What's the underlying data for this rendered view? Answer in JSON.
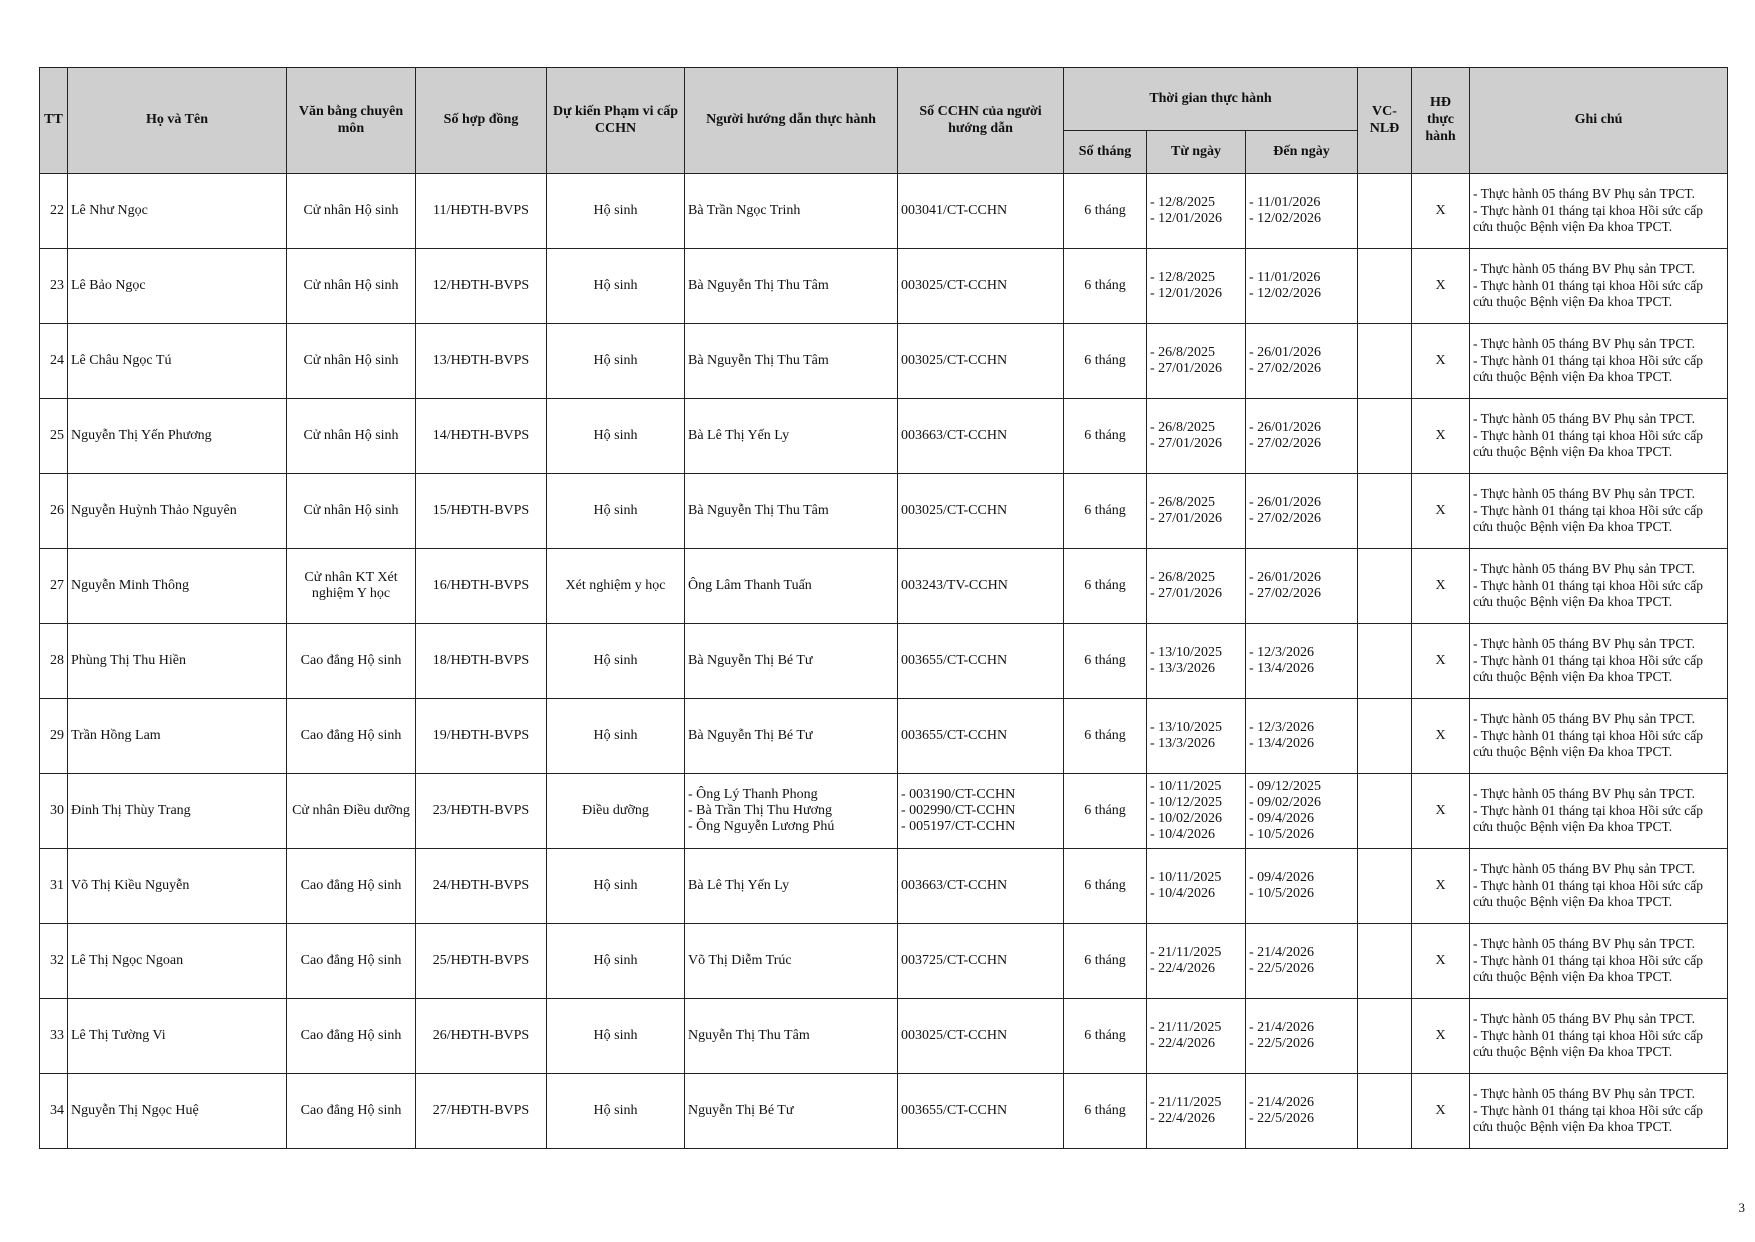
{
  "header": {
    "tt": "TT",
    "name": "Họ và Tên",
    "degree": "Văn bằng chuyên môn",
    "contract": "Số hợp đồng",
    "scope": "Dự kiến Phạm vi cấp CCHN",
    "instructor": "Người hướng dẫn thực hành",
    "cchn": "Số CCHN của người hướng dẫn",
    "period": "Thời gian thực hành",
    "months": "Số tháng",
    "from": "Từ ngày",
    "to": "Đến ngày",
    "vc": "VC-NLĐ",
    "hd": "HĐ thực hành",
    "note": "Ghi chú"
  },
  "rows": [
    {
      "tt": "22",
      "name": "Lê Như Ngọc",
      "degree": "Cử nhân Hộ sinh",
      "contract": "11/HĐTH-BVPS",
      "scope": "Hộ sinh",
      "instructor": [
        "Bà Trần Ngọc Trinh"
      ],
      "cchn": [
        "003041/CT-CCHN"
      ],
      "months": "6 tháng",
      "from": [
        "- 12/8/2025",
        "- 12/01/2026"
      ],
      "to": [
        "- 11/01/2026",
        "- 12/02/2026"
      ],
      "hd": "X",
      "note": [
        "- Thực hành 05 tháng BV Phụ sản TPCT.",
        "- Thực hành 01 tháng tại khoa Hồi sức cấp cứu thuộc Bệnh viện Đa khoa TPCT."
      ]
    },
    {
      "tt": "23",
      "name": "Lê Bảo Ngọc",
      "degree": "Cử nhân Hộ sinh",
      "contract": "12/HĐTH-BVPS",
      "scope": "Hộ sinh",
      "instructor": [
        "Bà Nguyễn Thị Thu Tâm"
      ],
      "cchn": [
        "003025/CT-CCHN"
      ],
      "months": "6 tháng",
      "from": [
        "- 12/8/2025",
        "- 12/01/2026"
      ],
      "to": [
        "- 11/01/2026",
        "- 12/02/2026"
      ],
      "hd": "X",
      "note": [
        "- Thực hành 05 tháng BV Phụ sản TPCT.",
        "- Thực hành 01 tháng tại khoa Hồi sức cấp cứu thuộc Bệnh viện Đa khoa TPCT."
      ]
    },
    {
      "tt": "24",
      "name": "Lê Châu Ngọc Tú",
      "degree": "Cử nhân Hộ sinh",
      "contract": "13/HĐTH-BVPS",
      "scope": "Hộ sinh",
      "instructor": [
        "Bà Nguyễn Thị Thu Tâm"
      ],
      "cchn": [
        "003025/CT-CCHN"
      ],
      "months": "6 tháng",
      "from": [
        "- 26/8/2025",
        "- 27/01/2026"
      ],
      "to": [
        "- 26/01/2026",
        "- 27/02/2026"
      ],
      "hd": "X",
      "note": [
        "- Thực hành 05 tháng BV Phụ sản TPCT.",
        "- Thực hành 01 tháng tại khoa Hồi sức cấp cứu thuộc Bệnh viện Đa khoa TPCT."
      ]
    },
    {
      "tt": "25",
      "name": "Nguyễn Thị Yến Phương",
      "degree": "Cử nhân Hộ sinh",
      "contract": "14/HĐTH-BVPS",
      "scope": "Hộ sinh",
      "instructor": [
        "Bà Lê Thị Yến Ly"
      ],
      "cchn": [
        "003663/CT-CCHN"
      ],
      "months": "6 tháng",
      "from": [
        "- 26/8/2025",
        "- 27/01/2026"
      ],
      "to": [
        "- 26/01/2026",
        "- 27/02/2026"
      ],
      "hd": "X",
      "note": [
        "- Thực hành 05 tháng BV Phụ sản TPCT.",
        "- Thực hành 01 tháng tại khoa Hồi sức cấp cứu thuộc Bệnh viện Đa khoa TPCT."
      ]
    },
    {
      "tt": "26",
      "name": "Nguyễn Huỳnh Thảo Nguyên",
      "degree": "Cử nhân Hộ sinh",
      "contract": "15/HĐTH-BVPS",
      "scope": "Hộ sinh",
      "instructor": [
        "Bà Nguyễn Thị Thu Tâm"
      ],
      "cchn": [
        "003025/CT-CCHN"
      ],
      "months": "6 tháng",
      "from": [
        "- 26/8/2025",
        "- 27/01/2026"
      ],
      "to": [
        "- 26/01/2026",
        "- 27/02/2026"
      ],
      "hd": "X",
      "note": [
        "- Thực hành 05 tháng BV Phụ sản TPCT.",
        "- Thực hành 01 tháng tại khoa Hồi sức cấp cứu thuộc Bệnh viện Đa khoa TPCT."
      ]
    },
    {
      "tt": "27",
      "name": "Nguyễn Minh Thông",
      "degree": "Cử nhân KT Xét nghiệm Y học",
      "contract": "16/HĐTH-BVPS",
      "scope": "Xét nghiệm y học",
      "instructor": [
        "Ông Lâm Thanh Tuấn"
      ],
      "cchn": [
        "003243/TV-CCHN"
      ],
      "months": "6 tháng",
      "from": [
        "- 26/8/2025",
        "- 27/01/2026"
      ],
      "to": [
        "- 26/01/2026",
        "- 27/02/2026"
      ],
      "hd": "X",
      "note": [
        "- Thực hành 05 tháng BV Phụ sản TPCT.",
        "- Thực hành 01 tháng tại khoa Hồi sức cấp cứu thuộc Bệnh viện Đa khoa TPCT."
      ]
    },
    {
      "tt": "28",
      "name": "Phùng Thị Thu Hiền",
      "degree": "Cao đẳng Hộ sinh",
      "contract": "18/HĐTH-BVPS",
      "scope": "Hộ sinh",
      "instructor": [
        "Bà Nguyễn Thị Bé Tư"
      ],
      "cchn": [
        "003655/CT-CCHN"
      ],
      "months": "6 tháng",
      "from": [
        "- 13/10/2025",
        "- 13/3/2026"
      ],
      "to": [
        "- 12/3/2026",
        "- 13/4/2026"
      ],
      "hd": "X",
      "note": [
        "- Thực hành 05 tháng BV Phụ sản TPCT.",
        "- Thực hành 01 tháng tại khoa Hồi sức cấp cứu thuộc Bệnh viện Đa khoa TPCT."
      ]
    },
    {
      "tt": "29",
      "name": "Trần Hồng Lam",
      "degree": "Cao đẳng Hộ sinh",
      "contract": "19/HĐTH-BVPS",
      "scope": "Hộ sinh",
      "instructor": [
        "Bà Nguyễn Thị Bé Tư"
      ],
      "cchn": [
        "003655/CT-CCHN"
      ],
      "months": "6 tháng",
      "from": [
        "- 13/10/2025",
        "- 13/3/2026"
      ],
      "to": [
        "- 12/3/2026",
        "- 13/4/2026"
      ],
      "hd": "X",
      "note": [
        "- Thực hành 05 tháng BV Phụ sản TPCT.",
        "- Thực hành 01 tháng tại khoa Hồi sức cấp cứu thuộc Bệnh viện Đa khoa TPCT."
      ]
    },
    {
      "tt": "30",
      "name": "Đinh Thị Thùy Trang",
      "degree": "Cử nhân Điều dưỡng",
      "contract": "23/HĐTH-BVPS",
      "scope": "Điều dưỡng",
      "instructor": [
        "- Ông Lý Thanh Phong",
        "- Bà Trần Thị Thu Hương",
        "- Ông Nguyễn Lương Phú"
      ],
      "cchn": [
        "- 003190/CT-CCHN",
        "- 002990/CT-CCHN",
        "- 005197/CT-CCHN"
      ],
      "months": "6 tháng",
      "from": [
        "- 10/11/2025",
        "- 10/12/2025",
        "- 10/02/2026",
        "- 10/4/2026"
      ],
      "to": [
        "- 09/12/2025",
        "- 09/02/2026",
        "- 09/4/2026",
        "- 10/5/2026"
      ],
      "hd": "X",
      "note": [
        "- Thực hành 05 tháng BV Phụ sản TPCT.",
        "- Thực hành 01 tháng tại khoa Hồi sức cấp cứu thuộc Bệnh viện Đa khoa TPCT."
      ]
    },
    {
      "tt": "31",
      "name": "Võ Thị Kiều Nguyễn",
      "degree": "Cao đẳng Hộ sinh",
      "contract": "24/HĐTH-BVPS",
      "scope": "Hộ sinh",
      "instructor": [
        "Bà Lê Thị Yến Ly"
      ],
      "cchn": [
        "003663/CT-CCHN"
      ],
      "months": "6 tháng",
      "from": [
        "- 10/11/2025",
        "- 10/4/2026"
      ],
      "to": [
        "- 09/4/2026",
        "- 10/5/2026"
      ],
      "hd": "X",
      "note": [
        "- Thực hành 05 tháng BV Phụ sản TPCT.",
        "- Thực hành 01 tháng tại khoa Hồi sức cấp cứu thuộc Bệnh viện Đa khoa TPCT."
      ]
    },
    {
      "tt": "32",
      "name": "Lê Thị Ngọc Ngoan",
      "degree": "Cao đẳng Hộ sinh",
      "contract": "25/HĐTH-BVPS",
      "scope": "Hộ sinh",
      "instructor": [
        "Võ Thị Diễm Trúc"
      ],
      "cchn": [
        "003725/CT-CCHN"
      ],
      "months": "6 tháng",
      "from": [
        "- 21/11/2025",
        "- 22/4/2026"
      ],
      "to": [
        "- 21/4/2026",
        "- 22/5/2026"
      ],
      "hd": "X",
      "note": [
        "- Thực hành 05 tháng BV Phụ sản TPCT.",
        "- Thực hành 01 tháng tại khoa Hồi sức cấp cứu thuộc Bệnh viện Đa khoa TPCT."
      ]
    },
    {
      "tt": "33",
      "name": "Lê Thị Tường Vi",
      "degree": "Cao đẳng Hộ sinh",
      "contract": "26/HĐTH-BVPS",
      "scope": "Hộ sinh",
      "instructor": [
        "Nguyễn Thị Thu Tâm"
      ],
      "cchn": [
        "003025/CT-CCHN"
      ],
      "months": "6 tháng",
      "from": [
        "- 21/11/2025",
        "- 22/4/2026"
      ],
      "to": [
        "- 21/4/2026",
        "- 22/5/2026"
      ],
      "hd": "X",
      "note": [
        "- Thực hành 05 tháng BV Phụ sản TPCT.",
        "- Thực hành 01 tháng tại khoa Hồi sức cấp cứu thuộc Bệnh viện Đa khoa TPCT."
      ]
    },
    {
      "tt": "34",
      "name": "Nguyễn Thị Ngọc Huệ",
      "degree": "Cao đẳng Hộ sinh",
      "contract": "27/HĐTH-BVPS",
      "scope": "Hộ sinh",
      "instructor": [
        "Nguyễn Thị Bé Tư"
      ],
      "cchn": [
        "003655/CT-CCHN"
      ],
      "months": "6 tháng",
      "from": [
        "- 21/11/2025",
        "- 22/4/2026"
      ],
      "to": [
        "- 21/4/2026",
        "- 22/5/2026"
      ],
      "hd": "X",
      "note": [
        "- Thực hành 05 tháng BV Phụ sản TPCT.",
        "- Thực hành 01 tháng tại khoa Hồi sức cấp cứu thuộc Bệnh viện Đa khoa TPCT."
      ]
    }
  ],
  "page_number": "3"
}
